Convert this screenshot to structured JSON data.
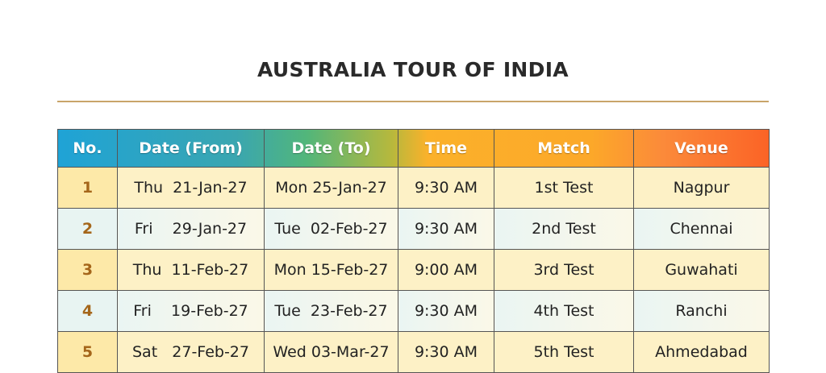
{
  "title": "AUSTRALIA TOUR OF INDIA",
  "headers": [
    "No.",
    "Date (From)",
    "Date (To)",
    "Time",
    "Match",
    "Venue"
  ],
  "rows": [
    {
      "no": "1",
      "from": "Thu  21-Jan-27",
      "to": "Mon 25-Jan-27",
      "time": "9:30 AM",
      "match": "1st Test",
      "venue": "Nagpur"
    },
    {
      "no": "2",
      "from": "Fri    29-Jan-27",
      "to": "Tue  02-Feb-27",
      "time": "9:30 AM",
      "match": "2nd Test",
      "venue": "Chennai"
    },
    {
      "no": "3",
      "from": "Thu  11-Feb-27",
      "to": "Mon 15-Feb-27",
      "time": "9:00 AM",
      "match": "3rd Test",
      "venue": "Guwahati"
    },
    {
      "no": "4",
      "from": "Fri    19-Feb-27",
      "to": "Tue  23-Feb-27",
      "time": "9:30 AM",
      "match": "4th Test",
      "venue": "Ranchi"
    },
    {
      "no": "5",
      "from": "Sat   27-Feb-27",
      "to": "Wed 03-Mar-27",
      "time": "9:30 AM",
      "match": "5th Test",
      "venue": "Ahmedabad"
    }
  ]
}
